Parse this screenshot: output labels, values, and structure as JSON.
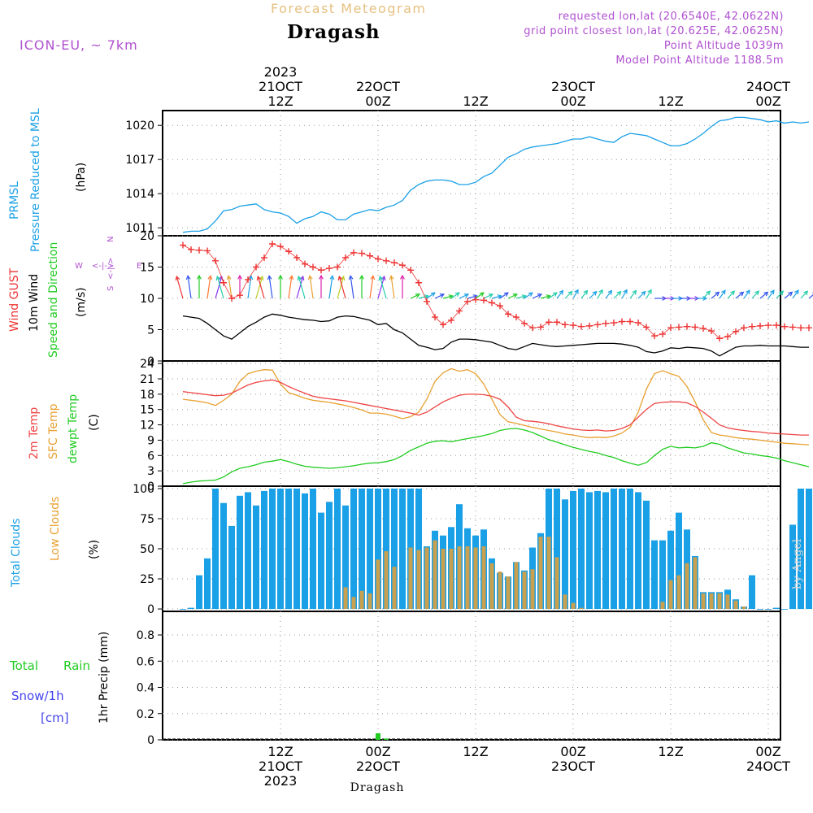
{
  "header": {
    "product": "Forecast Meteogram",
    "location": "Dragash",
    "model": "ICON-EU, ~ 7km",
    "requested": "requested lon,lat (20.6540E, 42.0622N)",
    "grid_point": "grid point closest lon,lat (20.625E, 42.0625N)",
    "point_altitude": "Point Altitude 1039m",
    "model_altitude": "Model Point Altitude 1188.5m",
    "footer_location": "Dragash",
    "watermark": "by Angel"
  },
  "time_axis": {
    "ticks": [
      {
        "hour": 12,
        "top": [
          "2023",
          "21OCT",
          "12Z"
        ],
        "bottom": [
          "12Z",
          "21OCT",
          "2023"
        ]
      },
      {
        "hour": 24,
        "top": [
          "22OCT",
          "00Z"
        ],
        "bottom": [
          "00Z",
          "22OCT"
        ]
      },
      {
        "hour": 36,
        "top": [
          "12Z"
        ],
        "bottom": [
          "12Z"
        ]
      },
      {
        "hour": 48,
        "top": [
          "23OCT",
          "00Z"
        ],
        "bottom": [
          "00Z",
          "23OCT"
        ]
      },
      {
        "hour": 60,
        "top": [
          "12Z"
        ],
        "bottom": [
          "12Z"
        ]
      },
      {
        "hour": 72,
        "top": [
          "24OCT",
          "00Z"
        ],
        "bottom": [
          "00Z",
          "24OCT"
        ]
      }
    ]
  },
  "panels": {
    "pressure": {
      "labels": [
        "PRMSL",
        "Pressure Reduced to MSL",
        "(hPa)"
      ],
      "ticks": [
        "1011",
        "1014",
        "1017",
        "1020"
      ]
    },
    "wind": {
      "labels": [
        "Wind GUST",
        "10m Wind",
        "Speed and Direction",
        "(m/s)"
      ],
      "compass": [
        "N",
        "S",
        "W",
        "E",
        "<-|->"
      ],
      "ticks": [
        "0",
        "5",
        "10",
        "15",
        "20"
      ]
    },
    "temp": {
      "labels": [
        "2m Temp",
        "SFC Temp",
        "dewpt Temp",
        "(C)"
      ],
      "ticks": [
        "0",
        "3",
        "6",
        "9",
        "12",
        "15",
        "18",
        "21",
        "24"
      ]
    },
    "clouds": {
      "labels": [
        "Total Clouds",
        "Low Clouds",
        "(%)"
      ],
      "ticks": [
        "0",
        "25",
        "50",
        "75",
        "100"
      ]
    },
    "precip": {
      "labels": [
        "Total",
        "Rain",
        "Snow/1h",
        "[cm]",
        "1hr Precip (mm)"
      ],
      "ticks": [
        "0",
        "0.2",
        "0.4",
        "0.6",
        "0.8"
      ]
    }
  },
  "colors": {
    "pressure": "#1aa0e6",
    "gust": "#ee3333",
    "wind": "#000000",
    "t2m": "#ee4444",
    "tsfc": "#e8a030",
    "dewpt": "#22cc22",
    "total_cloud": "#1aa0e6",
    "low_cloud": "#c8a050",
    "rain": "#22cc22",
    "snow": "#4444ee",
    "meta": "#b050d0",
    "title": "#e6c080"
  },
  "chart_data": [
    {
      "type": "line",
      "title": "PRMSL Pressure Reduced to MSL",
      "ylabel": "(hPa)",
      "ylim": [
        1010.3,
        1021.3
      ],
      "x_start_hour": 0,
      "x_step_hours": 1,
      "series": [
        {
          "name": "PRMSL",
          "values": [
            1010.6,
            1010.7,
            1010.7,
            1010.9,
            1011.6,
            1012.5,
            1012.6,
            1012.9,
            1013.0,
            1013.1,
            1012.6,
            1012.4,
            1012.3,
            1012.0,
            1011.4,
            1011.8,
            1012.0,
            1012.4,
            1012.2,
            1011.7,
            1011.7,
            1012.2,
            1012.4,
            1012.6,
            1012.5,
            1012.8,
            1013.0,
            1013.4,
            1014.3,
            1014.8,
            1015.1,
            1015.2,
            1015.2,
            1015.1,
            1014.8,
            1014.8,
            1015.0,
            1015.5,
            1015.8,
            1016.5,
            1017.2,
            1017.5,
            1017.9,
            1018.1,
            1018.2,
            1018.3,
            1018.4,
            1018.6,
            1018.8,
            1018.8,
            1019.0,
            1018.8,
            1018.6,
            1018.5,
            1019.0,
            1019.3,
            1019.2,
            1019.1,
            1018.8,
            1018.5,
            1018.2,
            1018.2,
            1018.4,
            1018.8,
            1019.3,
            1019.9,
            1020.4,
            1020.5,
            1020.7,
            1020.7,
            1020.6,
            1020.5,
            1020.3,
            1020.4,
            1020.2,
            1020.3,
            1020.2,
            1020.3
          ]
        }
      ]
    },
    {
      "type": "line",
      "title": "Wind GUST / 10m Wind Speed and Direction",
      "ylabel": "(m/s)",
      "ylim": [
        0,
        20
      ],
      "x_start_hour": 0,
      "x_step_hours": 1,
      "series": [
        {
          "name": "Wind GUST",
          "values": [
            18.5,
            17.8,
            17.7,
            17.6,
            16.0,
            12.5,
            10.0,
            10.5,
            13.0,
            15.0,
            16.5,
            18.7,
            18.3,
            17.5,
            16.5,
            15.5,
            15.0,
            14.5,
            14.8,
            15.0,
            16.5,
            17.3,
            17.2,
            16.8,
            16.3,
            16.0,
            15.7,
            15.3,
            14.5,
            12.5,
            9.5,
            7.0,
            5.8,
            6.5,
            8.0,
            9.5,
            9.8,
            9.7,
            9.3,
            8.8,
            7.5,
            7.0,
            6.0,
            5.3,
            5.4,
            6.2,
            6.2,
            5.8,
            5.7,
            5.5,
            5.6,
            5.8,
            6.0,
            6.1,
            6.3,
            6.3,
            6.1,
            5.4,
            4.0,
            4.3,
            5.3,
            5.4,
            5.5,
            5.4,
            5.2,
            4.8,
            3.6,
            3.9,
            4.7,
            5.3,
            5.5,
            5.6,
            5.7,
            5.7,
            5.5,
            5.4,
            5.3,
            5.3
          ]
        },
        {
          "name": "10m Wind",
          "values": [
            7.2,
            7.0,
            6.8,
            6.0,
            5.0,
            4.0,
            3.5,
            4.5,
            5.5,
            6.2,
            7.0,
            7.5,
            7.3,
            7.0,
            6.8,
            6.6,
            6.5,
            6.3,
            6.4,
            7.0,
            7.2,
            7.1,
            6.8,
            6.5,
            5.8,
            6.0,
            5.0,
            4.5,
            3.5,
            2.5,
            2.2,
            1.8,
            2.0,
            3.0,
            3.5,
            3.5,
            3.4,
            3.2,
            3.0,
            2.5,
            2.0,
            1.8,
            2.3,
            2.8,
            2.6,
            2.4,
            2.3,
            2.4,
            2.5,
            2.6,
            2.7,
            2.8,
            2.8,
            2.8,
            2.7,
            2.5,
            2.2,
            1.5,
            1.3,
            1.6,
            2.1,
            2.0,
            2.2,
            2.1,
            2.0,
            1.6,
            0.8,
            1.5,
            2.2,
            2.4,
            2.4,
            2.5,
            2.4,
            2.4,
            2.4,
            2.3,
            2.2,
            2.2
          ]
        }
      ]
    },
    {
      "type": "line",
      "title": "Temperatures",
      "ylabel": "(C)",
      "ylim": [
        0,
        24.5
      ],
      "x_start_hour": 0,
      "x_step_hours": 1,
      "series": [
        {
          "name": "2m Temp",
          "values": [
            18.5,
            18.3,
            18.1,
            17.9,
            17.7,
            17.8,
            18.2,
            19.0,
            19.8,
            20.3,
            20.6,
            20.8,
            20.3,
            19.5,
            18.8,
            18.2,
            17.6,
            17.3,
            17.1,
            16.9,
            16.7,
            16.4,
            16.1,
            15.8,
            15.5,
            15.2,
            14.9,
            14.6,
            14.3,
            13.9,
            14.5,
            15.5,
            16.5,
            17.2,
            17.8,
            18.0,
            18.0,
            17.9,
            17.6,
            17.0,
            15.5,
            13.5,
            12.8,
            12.7,
            12.5,
            12.2,
            11.8,
            11.5,
            11.2,
            11.0,
            10.9,
            11.0,
            10.8,
            10.9,
            11.3,
            12.0,
            13.5,
            15.0,
            16.2,
            16.4,
            16.5,
            16.5,
            16.3,
            15.6,
            14.5,
            13.3,
            12.0,
            11.4,
            11.1,
            10.9,
            10.7,
            10.6,
            10.4,
            10.3,
            10.2,
            10.1,
            10.0,
            10.0
          ]
        },
        {
          "name": "SFC Temp",
          "values": [
            17.0,
            16.8,
            16.6,
            16.3,
            15.8,
            16.8,
            18.0,
            20.5,
            22.0,
            22.5,
            22.8,
            22.7,
            20.0,
            18.3,
            17.8,
            17.2,
            16.8,
            16.6,
            16.4,
            16.1,
            15.8,
            15.4,
            14.9,
            14.3,
            14.3,
            14.1,
            13.7,
            13.2,
            13.6,
            14.5,
            17.0,
            20.5,
            22.2,
            23.0,
            22.5,
            22.8,
            22.0,
            20.0,
            17.0,
            14.0,
            12.6,
            12.3,
            11.9,
            11.5,
            11.2,
            10.9,
            10.6,
            10.2,
            10.0,
            9.7,
            9.5,
            9.6,
            9.5,
            9.8,
            10.4,
            11.5,
            14.5,
            19.0,
            22.0,
            22.6,
            22.0,
            21.5,
            19.5,
            16.5,
            13.0,
            10.5,
            10.0,
            9.8,
            9.5,
            9.3,
            9.2,
            9.0,
            8.8,
            8.6,
            8.4,
            8.3,
            8.2,
            8.1
          ]
        },
        {
          "name": "dewpt Temp",
          "values": [
            0.5,
            0.8,
            1.0,
            1.1,
            1.2,
            1.8,
            2.8,
            3.5,
            3.8,
            4.2,
            4.7,
            4.9,
            5.2,
            4.8,
            4.3,
            3.9,
            3.7,
            3.6,
            3.5,
            3.6,
            3.8,
            4.0,
            4.3,
            4.5,
            4.6,
            4.8,
            5.2,
            6.0,
            7.0,
            7.7,
            8.4,
            8.8,
            8.9,
            8.7,
            9.0,
            9.3,
            9.6,
            9.9,
            10.3,
            10.9,
            11.2,
            11.3,
            11.0,
            10.5,
            9.8,
            9.1,
            8.6,
            8.1,
            7.6,
            7.2,
            6.8,
            6.5,
            6.0,
            5.6,
            5.0,
            4.5,
            4.1,
            4.6,
            6.0,
            7.2,
            7.8,
            7.5,
            7.6,
            7.5,
            7.8,
            8.5,
            8.2,
            7.5,
            7.0,
            6.5,
            6.3,
            6.0,
            5.8,
            5.5,
            5.0,
            4.6,
            4.2,
            3.8
          ]
        }
      ]
    },
    {
      "type": "bar",
      "title": "Clouds",
      "ylabel": "(%)",
      "ylim": [
        -2,
        102
      ],
      "x_start_hour": 0,
      "x_step_hours": 1,
      "series": [
        {
          "name": "Total Clouds",
          "values": [
            0,
            1,
            28,
            42,
            100,
            88,
            69,
            94,
            97,
            86,
            98,
            100,
            100,
            100,
            100,
            96,
            100,
            80,
            89,
            100,
            86,
            100,
            100,
            100,
            100,
            100,
            100,
            100,
            100,
            100,
            52,
            65,
            61,
            68,
            87,
            67,
            61,
            66,
            42,
            30,
            27,
            39,
            32,
            51,
            63,
            100,
            100,
            91,
            98,
            100,
            97,
            98,
            97,
            100,
            100,
            100,
            97,
            90,
            57,
            57,
            65,
            80,
            66,
            44,
            14,
            14,
            14,
            16,
            8,
            2,
            28,
            0,
            0,
            1,
            0,
            70,
            100,
            100
          ]
        },
        {
          "name": "Low Clouds",
          "values": [
            0,
            0,
            0,
            0,
            0,
            0,
            0,
            0,
            0,
            0,
            0,
            0,
            0,
            0,
            0,
            0,
            0,
            0,
            0,
            0,
            18,
            10,
            15,
            13,
            41,
            48,
            35,
            0,
            51,
            49,
            51,
            57,
            50,
            50,
            52,
            52,
            51,
            52,
            38,
            31,
            27,
            39,
            31,
            33,
            60,
            60,
            43,
            12,
            5,
            1,
            0,
            0,
            0,
            0,
            0,
            0,
            0,
            0,
            0,
            6,
            24,
            28,
            38,
            43,
            13,
            13,
            13,
            12,
            7,
            2,
            0,
            0,
            0,
            0,
            0,
            0,
            0,
            0
          ]
        }
      ]
    },
    {
      "type": "bar",
      "title": "1hr Precip",
      "ylabel": "1hr Precip (mm)",
      "ylim": [
        0,
        0.98
      ],
      "x_start_hour": 0,
      "x_step_hours": 1,
      "series": [
        {
          "name": "Total Rain",
          "values": [
            0,
            0,
            0,
            0,
            0,
            0,
            0,
            0,
            0,
            0,
            0,
            0,
            0,
            0,
            0,
            0,
            0,
            0,
            0,
            0,
            0,
            0,
            0,
            0,
            0.05,
            0.01,
            0,
            0,
            0,
            0,
            0,
            0,
            0,
            0,
            0,
            0,
            0,
            0,
            0,
            0,
            0,
            0,
            0,
            0,
            0,
            0,
            0,
            0,
            0,
            0,
            0,
            0,
            0,
            0,
            0,
            0,
            0,
            0,
            0,
            0,
            0,
            0,
            0,
            0,
            0,
            0,
            0,
            0,
            0,
            0,
            0,
            0,
            0,
            0,
            0,
            0,
            0,
            0
          ]
        },
        {
          "name": "Snow/1h",
          "values": [
            0,
            0,
            0,
            0,
            0,
            0,
            0,
            0,
            0,
            0,
            0,
            0,
            0,
            0,
            0,
            0,
            0,
            0,
            0,
            0,
            0,
            0,
            0,
            0,
            0,
            0,
            0,
            0,
            0,
            0,
            0,
            0,
            0,
            0,
            0,
            0,
            0,
            0,
            0,
            0,
            0,
            0,
            0,
            0,
            0,
            0,
            0,
            0,
            0,
            0,
            0,
            0,
            0,
            0,
            0,
            0,
            0,
            0,
            0,
            0,
            0,
            0,
            0,
            0,
            0,
            0,
            0,
            0,
            0,
            0,
            0,
            0,
            0,
            0,
            0,
            0,
            0,
            0
          ]
        }
      ]
    }
  ]
}
